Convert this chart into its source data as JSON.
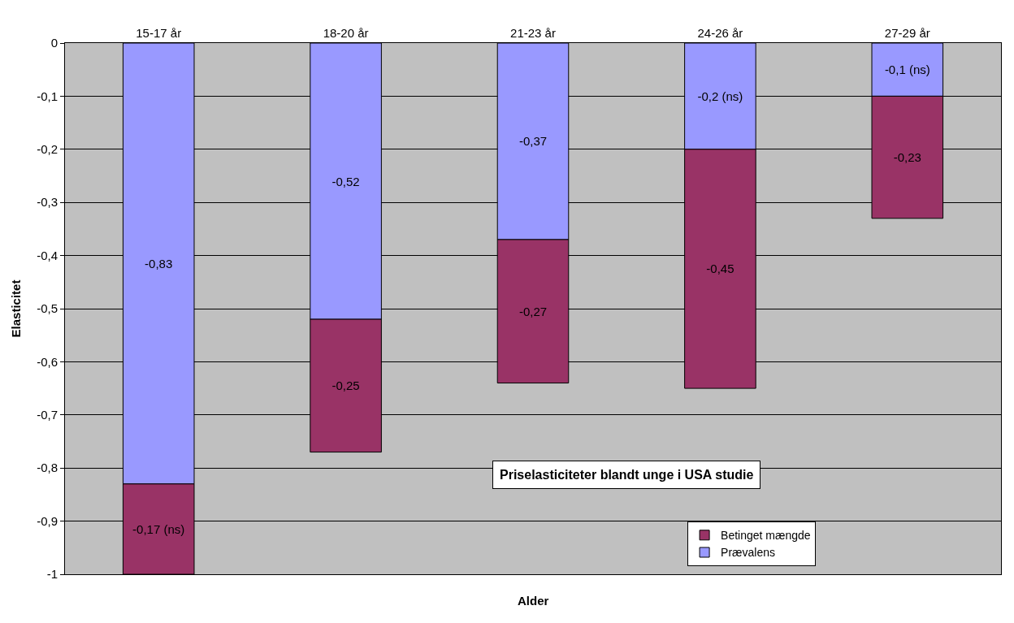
{
  "chart_data": {
    "type": "bar",
    "stacked": true,
    "title": "Priselasticiteter blandt unge i USA studie",
    "xlabel": "Alder",
    "ylabel": "Elasticitet",
    "categories": [
      "15-17 år",
      "18-20 år",
      "21-23 år",
      "24-26 år",
      "27-29 år"
    ],
    "series": [
      {
        "name": "Prævalens",
        "color": "#9999ff",
        "values": [
          -0.83,
          -0.52,
          -0.37,
          -0.2,
          -0.1
        ],
        "value_labels": [
          "-0,83",
          "-0,52",
          "-0,37",
          "-0,2 (ns)",
          "-0,1 (ns)"
        ]
      },
      {
        "name": "Betinget mængde",
        "color": "#993366",
        "values": [
          -0.17,
          -0.25,
          -0.27,
          -0.45,
          -0.23
        ],
        "value_labels": [
          "-0,17 (ns)",
          "-0,25",
          "-0,27",
          "-0,45",
          "-0,23"
        ]
      }
    ],
    "ylim": [
      -1,
      0
    ],
    "yticks": [
      -1,
      {
        "value": -0.9,
        "label": "-0,9"
      },
      {
        "value": -0.8,
        "label": "-0,8"
      },
      {
        "value": -0.7,
        "label": "-0,7"
      },
      {
        "value": -0.6,
        "label": "-0,6"
      },
      {
        "value": -0.5,
        "label": "-0,5"
      },
      {
        "value": -0.4,
        "label": "-0,4"
      },
      {
        "value": -0.3,
        "label": "-0,3"
      },
      {
        "value": -0.2,
        "label": "-0,2"
      },
      {
        "value": -0.1,
        "label": "-0,1"
      },
      0
    ],
    "grid": "y",
    "legend": "bottom right"
  }
}
